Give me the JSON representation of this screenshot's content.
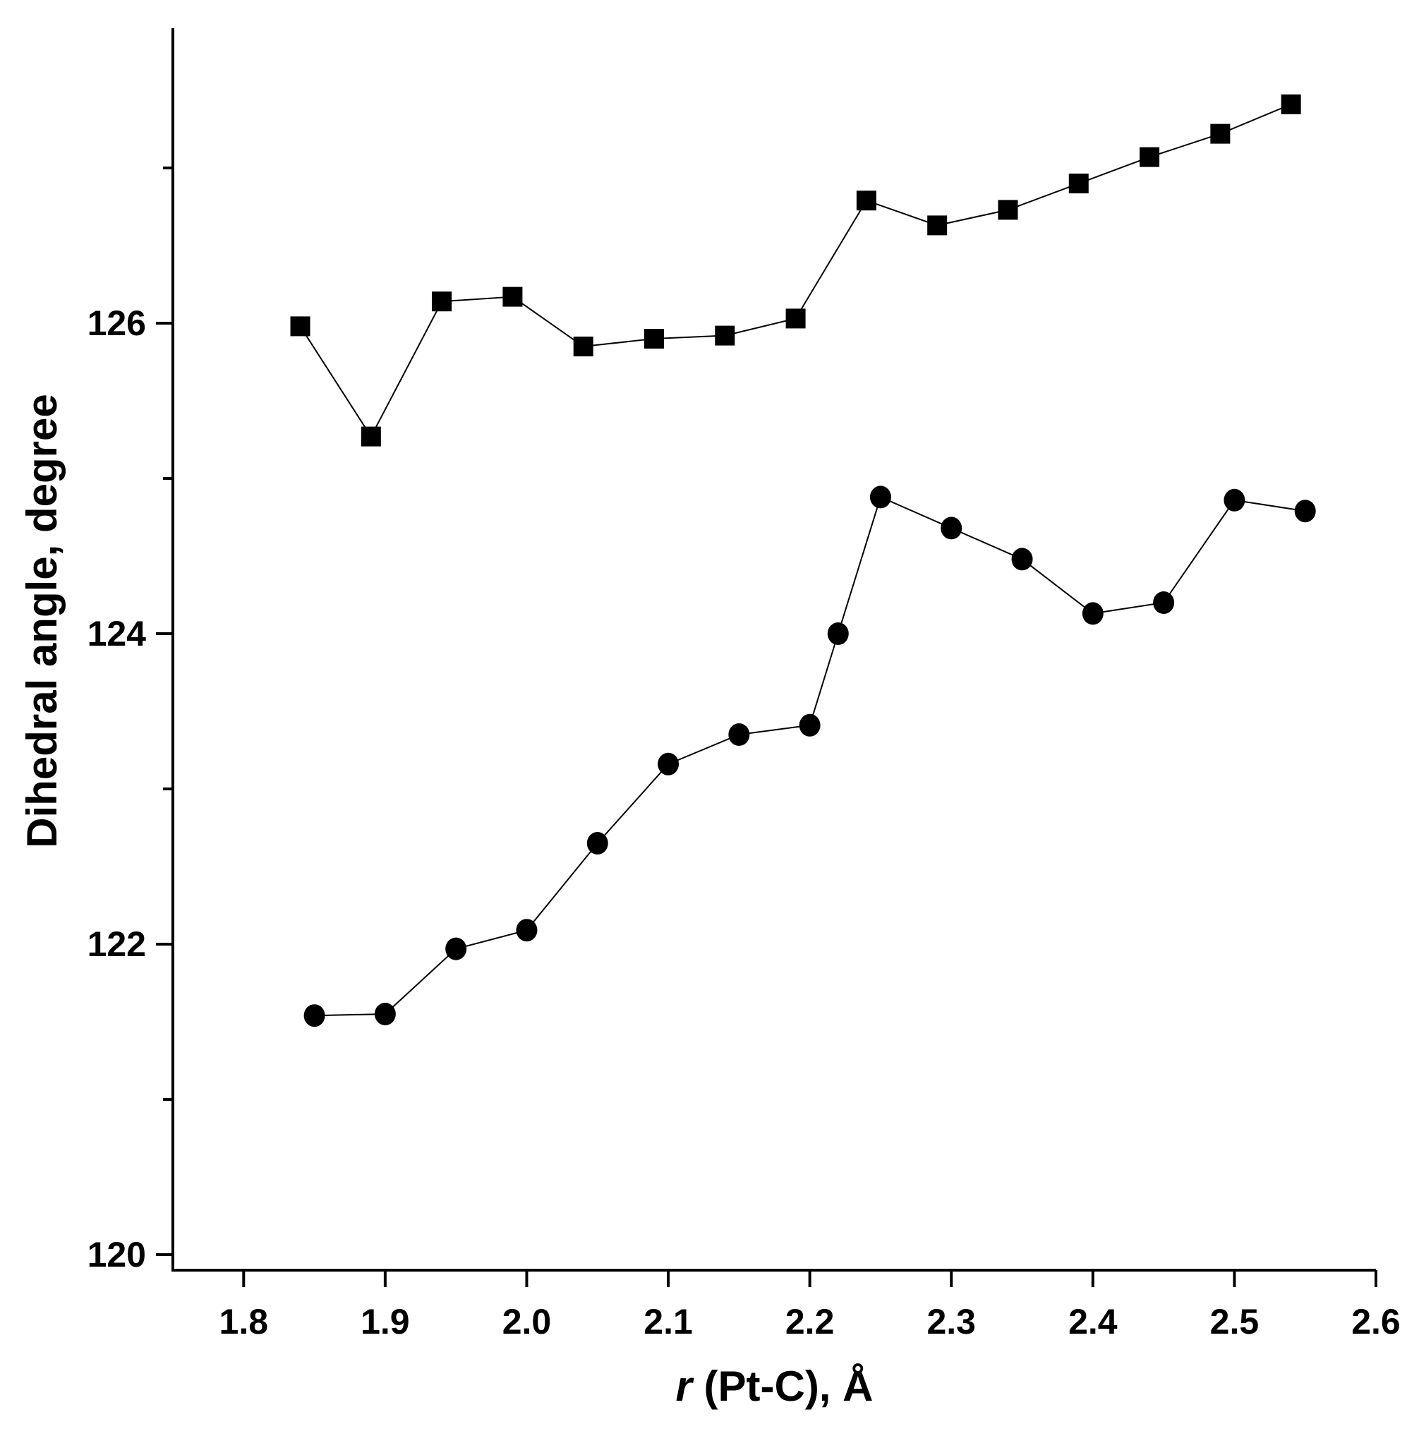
{
  "chart_data": {
    "type": "line",
    "xlabel": {
      "var": "r",
      "rest": " (Pt-C), Å"
    },
    "ylabel": "Dihedral angle, degree",
    "xlim": [
      1.75,
      2.6
    ],
    "ylim": [
      119.9,
      127.9
    ],
    "x_ticks": [
      "1.8",
      "1.9",
      "2.0",
      "2.1",
      "2.2",
      "2.3",
      "2.4",
      "2.5",
      "2.6"
    ],
    "y_ticks": [
      "120",
      "122",
      "124",
      "126"
    ],
    "y_tick_values": [
      120,
      122,
      124,
      126
    ],
    "y_minor_ticks": [
      121,
      123,
      125,
      127
    ],
    "grid": false,
    "legend": "none",
    "series": [
      {
        "marker": "square",
        "color": "#000000",
        "x": [
          1.84,
          1.89,
          1.94,
          1.99,
          2.04,
          2.09,
          2.14,
          2.19,
          2.24,
          2.29,
          2.34,
          2.39,
          2.44,
          2.49,
          2.54
        ],
        "y": [
          125.98,
          125.27,
          126.14,
          126.17,
          125.85,
          125.9,
          125.92,
          126.03,
          126.79,
          126.63,
          126.73,
          126.9,
          127.07,
          127.22,
          127.41
        ]
      },
      {
        "marker": "circle",
        "color": "#000000",
        "x": [
          1.85,
          1.9,
          1.95,
          2.0,
          2.05,
          2.1,
          2.15,
          2.2,
          2.22,
          2.25,
          2.3,
          2.35,
          2.4,
          2.45,
          2.5,
          2.55
        ],
        "y": [
          121.54,
          121.55,
          121.97,
          122.09,
          122.65,
          123.16,
          123.35,
          123.41,
          124.0,
          124.88,
          124.68,
          124.48,
          124.13,
          124.2,
          124.86,
          124.79
        ]
      }
    ]
  }
}
